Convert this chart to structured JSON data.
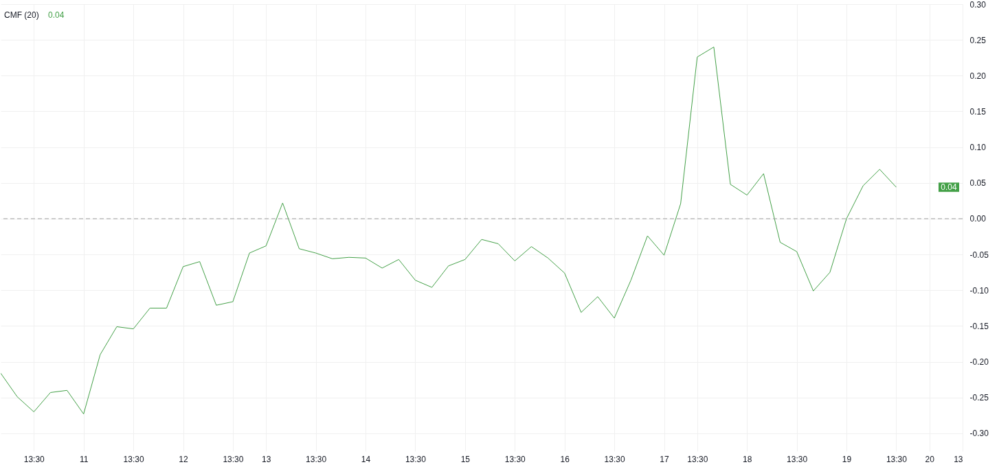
{
  "chart_data": {
    "type": "line",
    "title": "CMF (20)",
    "subtitle": "0.04",
    "categories": [
      null,
      null,
      "13:30",
      null,
      null,
      "11",
      null,
      null,
      "13:30",
      null,
      null,
      "12",
      null,
      null,
      "13:30",
      null,
      "13",
      null,
      null,
      "13:30",
      null,
      null,
      "14",
      null,
      null,
      "13:30",
      null,
      null,
      "15",
      null,
      null,
      "13:30",
      null,
      null,
      "16",
      null,
      null,
      "13:30",
      null,
      null,
      "17",
      null,
      "13:30",
      null,
      null,
      "18",
      null,
      null,
      "13:30",
      null,
      null,
      "19",
      null,
      null,
      "13:30",
      null,
      "20",
      null,
      "13"
    ],
    "series": [
      {
        "color": "#43a047",
        "values": [
          -0.216,
          -0.249,
          -0.27,
          -0.243,
          -0.24,
          -0.273,
          -0.19,
          -0.151,
          -0.154,
          -0.125,
          -0.125,
          -0.067,
          -0.06,
          -0.121,
          -0.116,
          -0.048,
          -0.038,
          0.022,
          -0.042,
          -0.048,
          -0.056,
          -0.054,
          -0.055,
          -0.069,
          -0.057,
          -0.086,
          -0.096,
          -0.066,
          -0.057,
          -0.029,
          -0.035,
          -0.059,
          -0.039,
          -0.055,
          -0.076,
          -0.131,
          -0.109,
          -0.139,
          -0.086,
          -0.024,
          -0.051,
          0.021,
          0.226,
          0.24,
          0.048,
          0.033,
          0.063,
          -0.033,
          -0.046,
          -0.101,
          -0.075,
          0.0,
          0.046,
          0.069,
          0.044,
          null,
          null,
          null,
          null
        ]
      }
    ],
    "ylim": [
      -0.325,
      0.3
    ],
    "yticks": [
      {
        "value": -0.3,
        "label": "-0.30"
      },
      {
        "value": -0.25,
        "label": "-0.25"
      },
      {
        "value": -0.2,
        "label": "-0.20"
      },
      {
        "value": -0.15,
        "label": "-0.15"
      },
      {
        "value": -0.1,
        "label": "-0.10"
      },
      {
        "value": -0.05,
        "label": "-0.05"
      },
      {
        "value": 0,
        "label": "0.00"
      },
      {
        "value": 0.05,
        "label": "0.05"
      },
      {
        "value": 0.1,
        "label": "0.10"
      },
      {
        "value": 0.15,
        "label": "0.15"
      },
      {
        "value": 0.2,
        "label": "0.20"
      },
      {
        "value": 0.25,
        "label": "0.25"
      },
      {
        "value": 0.3,
        "label": "0.30"
      }
    ],
    "ref_lines": [
      {
        "axis": "y",
        "value": 0,
        "color": "#9e9e9e",
        "line_style": "dashed"
      }
    ],
    "annotations": [
      "0.04"
    ],
    "grid": true,
    "line_style": "solid"
  }
}
